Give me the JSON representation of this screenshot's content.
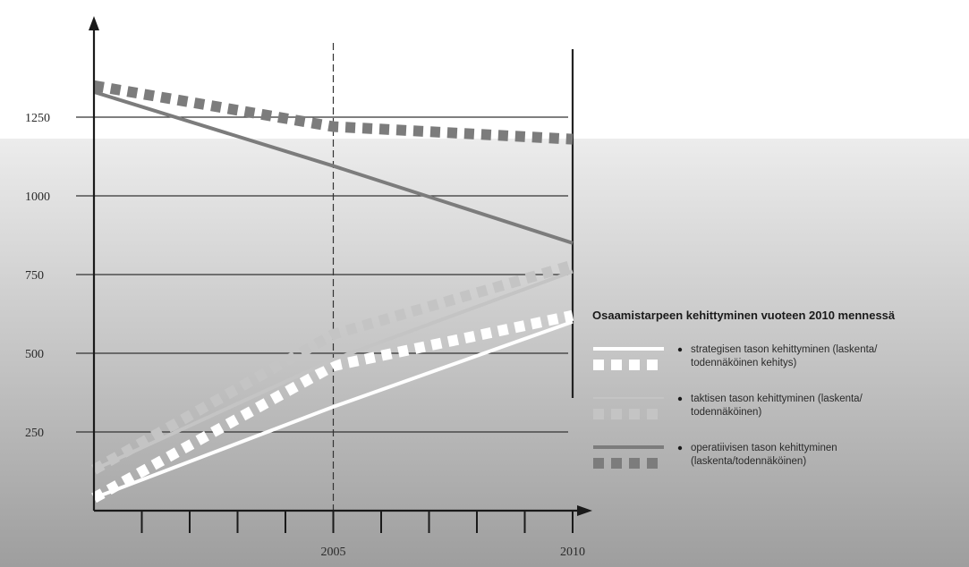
{
  "chart_data": {
    "type": "line",
    "title": "",
    "xlabel": "",
    "ylabel": "",
    "x_ticks": [
      2005,
      2010
    ],
    "xlim": [
      2000,
      2010
    ],
    "ylim": [
      0,
      1400
    ],
    "y_ticks": [
      250,
      500,
      750,
      1000,
      1250
    ],
    "grid": "horizontal",
    "legend": {
      "title": "Osaamistarpeen  kehittyminen vuoteen 2010 mennessä",
      "placement": "right",
      "entries": [
        {
          "line1": "strategisen tason kehittyminen (laskenta/",
          "line2": "todennäköinen kehitys)"
        },
        {
          "line1": "taktisen tason kehittyminen (laskenta/",
          "line2": "todennäköinen)"
        },
        {
          "line1": "operatiivisen tason kehittyminen",
          "line2": "(laskenta/todennäköinen)"
        }
      ]
    },
    "series": [
      {
        "key": "strategic_calc",
        "style": "solid",
        "color": "#ffffff",
        "x": [
          2000,
          2005,
          2010
        ],
        "y": [
          40,
          330,
          600
        ]
      },
      {
        "key": "strategic_prob",
        "style": "squares",
        "color": "#ffffff",
        "x": [
          2000,
          2005,
          2010
        ],
        "y": [
          40,
          460,
          620
        ]
      },
      {
        "key": "tactical_calc",
        "style": "solid",
        "color": "#c4c4c4",
        "x": [
          2000,
          2005,
          2010
        ],
        "y": [
          130,
          480,
          760
        ]
      },
      {
        "key": "tactical_prob",
        "style": "squares",
        "color": "#c4c4c4",
        "x": [
          2000,
          2005,
          2010
        ],
        "y": [
          130,
          560,
          780
        ]
      },
      {
        "key": "operative_calc",
        "style": "solid",
        "color": "#7c7c7c",
        "x": [
          2000,
          2005,
          2010
        ],
        "y": [
          1330,
          1095,
          850
        ]
      },
      {
        "key": "operative_prob",
        "style": "squares",
        "color": "#7c7c7c",
        "x": [
          2000,
          2005,
          2010
        ],
        "y": [
          1350,
          1220,
          1180
        ]
      }
    ]
  }
}
